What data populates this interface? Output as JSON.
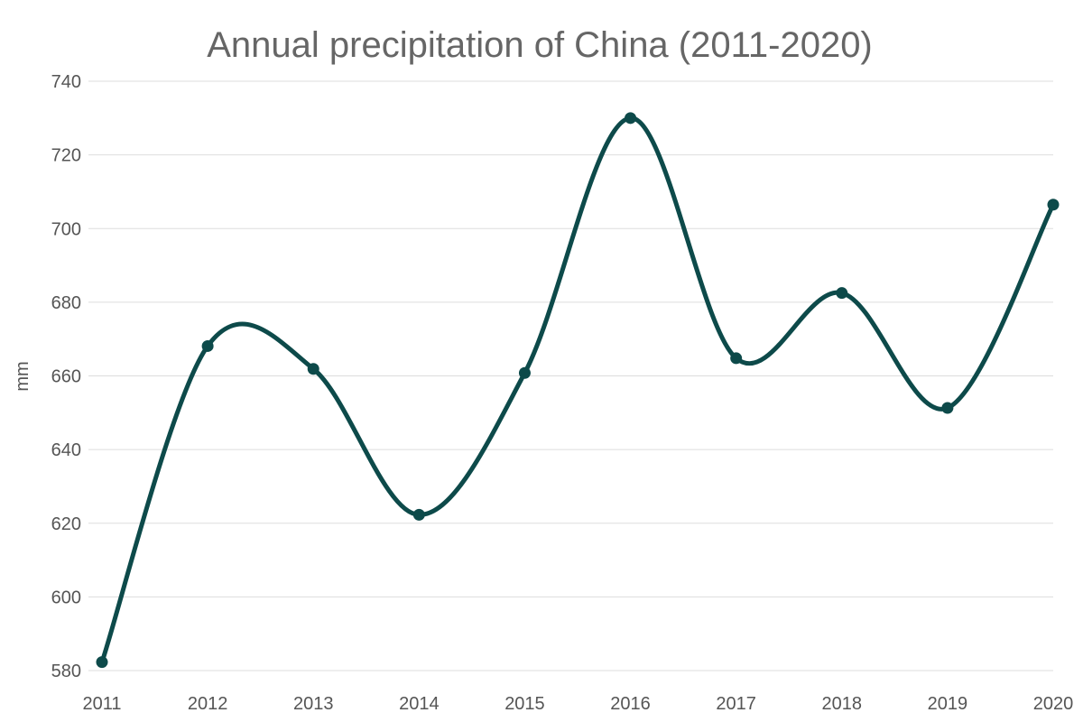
{
  "chart_data": {
    "type": "line",
    "title": "Annual precipitation of China (2011-2020)",
    "xlabel": "",
    "ylabel": "mm",
    "x": [
      "2011",
      "2012",
      "2013",
      "2014",
      "2015",
      "2016",
      "2017",
      "2018",
      "2019",
      "2020"
    ],
    "series": [
      {
        "values": [
          582.3,
          668.1,
          661.9,
          622.3,
          660.8,
          730.0,
          664.8,
          682.5,
          651.3,
          706.5
        ],
        "color": "#0d4a4a"
      }
    ],
    "ylim": [
      580,
      740
    ],
    "yticks": [
      "580",
      "600",
      "620",
      "640",
      "660",
      "680",
      "700",
      "720",
      "740"
    ],
    "grid": true,
    "smooth": true,
    "markers": true,
    "legend": "none"
  }
}
